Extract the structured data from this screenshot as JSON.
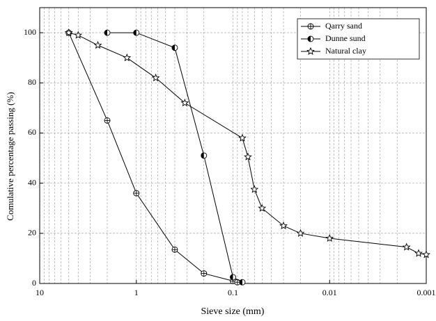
{
  "chart_data": {
    "type": "line",
    "xlabel": "Sieve size (mm)",
    "ylabel": "Comulative percentage passing (%)",
    "xscale": "log",
    "xreversed": true,
    "grid": true,
    "legend": "upper right",
    "xlim": [
      10,
      0.001
    ],
    "xticks": [
      10,
      1,
      0.1,
      0.01,
      0.001
    ],
    "ylim": [
      0,
      110
    ],
    "yticks": [
      0,
      20,
      40,
      60,
      80,
      100
    ],
    "series": [
      {
        "name": "Qarry sand",
        "marker": "crossed-circle",
        "color": "#000000",
        "x": [
          5,
          2,
          1,
          0.4,
          0.2,
          0.1,
          0.09
        ],
        "values": [
          100,
          65,
          36,
          13.5,
          4,
          1,
          0.5
        ]
      },
      {
        "name": "Dunne sund",
        "marker": "half-circle",
        "color": "#000000",
        "x": [
          2,
          1,
          0.4,
          0.2,
          0.1,
          0.08
        ],
        "values": [
          100,
          100,
          94,
          51,
          2.5,
          0.5
        ]
      },
      {
        "name": "Natural clay",
        "marker": "star",
        "color": "#000000",
        "x": [
          5,
          4,
          2.5,
          1.25,
          0.63,
          0.315,
          0.08,
          0.07,
          0.06,
          0.05,
          0.03,
          0.02,
          0.01,
          0.0016,
          0.0012,
          0.001
        ],
        "values": [
          100,
          99,
          95,
          90,
          82,
          72,
          58,
          50.5,
          37.5,
          30,
          23,
          20,
          18,
          14.5,
          12,
          11.5
        ]
      }
    ]
  }
}
